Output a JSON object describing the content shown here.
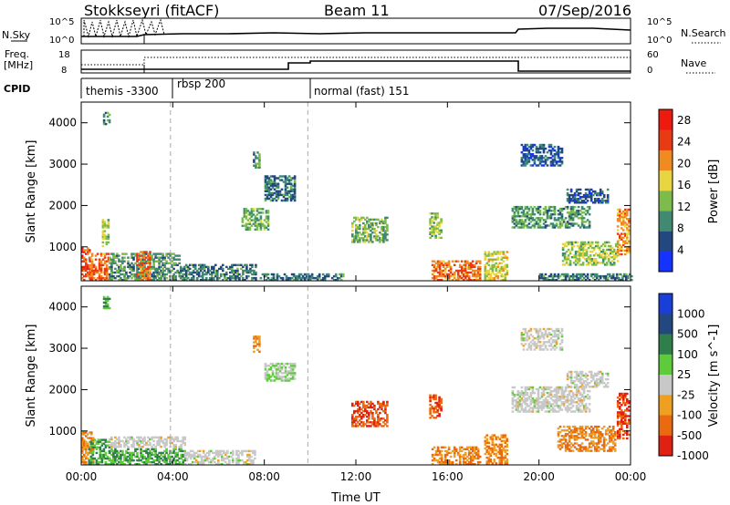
{
  "header": {
    "left_title": "Stokkseyri (fitACF)",
    "beam_label": "Beam 11",
    "date": "07/Sep/2016"
  },
  "nsky_panel": {
    "left_label": "N.Sky",
    "right_label": "N.Search",
    "left_ticks": [
      "10^5",
      "10^0"
    ],
    "right_ticks": [
      "10^5",
      "10^0"
    ]
  },
  "freq_panel": {
    "left_label_1": "Freq.",
    "left_label_2": "[MHz]",
    "right_label": "Nave",
    "left_ticks": [
      "18",
      "8"
    ],
    "right_ticks": [
      "60",
      "0"
    ]
  },
  "cpid": {
    "label": "CPID",
    "segments": [
      {
        "name": "themis -3300",
        "start_hour": 0.0
      },
      {
        "name": "rbsp 200",
        "start_hour": 3.9
      },
      {
        "name": "normal (fast) 151",
        "start_hour": 9.9
      }
    ]
  },
  "chart_data": [
    {
      "type": "heatmap",
      "title": "Power",
      "xlabel": "Time UT",
      "ylabel": "Slant Range [km]",
      "xlim_hours": [
        0,
        24
      ],
      "ylim_km": [
        180,
        4500
      ],
      "x_ticks": [
        "00:00",
        "04:00",
        "08:00",
        "12:00",
        "16:00",
        "20:00",
        "00:00"
      ],
      "y_ticks": [
        1000,
        2000,
        3000,
        4000
      ],
      "colorbar": {
        "label": "Power [dB]",
        "ticks": [
          4,
          8,
          12,
          16,
          20,
          24,
          28
        ],
        "range": [
          0,
          30
        ],
        "colors": [
          "#1433ff",
          "#23477f",
          "#3f8a70",
          "#7dbc4a",
          "#e8d640",
          "#f08b22",
          "#e83a14",
          "#ee1a10"
        ]
      },
      "echo_regions": [
        {
          "t0": 0.0,
          "t1": 0.35,
          "r0": 180,
          "r1": 950,
          "level": 24
        },
        {
          "t0": 0.35,
          "t1": 1.2,
          "r0": 180,
          "r1": 850,
          "level": 22
        },
        {
          "t0": 0.95,
          "t1": 1.2,
          "r0": 3950,
          "r1": 4250,
          "level": 10
        },
        {
          "t0": 0.9,
          "t1": 1.2,
          "r0": 1000,
          "r1": 1650,
          "level": 14
        },
        {
          "t0": 1.2,
          "t1": 4.3,
          "r0": 180,
          "r1": 850,
          "level": 10
        },
        {
          "t0": 2.4,
          "t1": 3.0,
          "r0": 180,
          "r1": 900,
          "level": 22
        },
        {
          "t0": 4.3,
          "t1": 7.6,
          "r0": 180,
          "r1": 550,
          "level": 8
        },
        {
          "t0": 7.5,
          "t1": 7.8,
          "r0": 2900,
          "r1": 3300,
          "level": 10
        },
        {
          "t0": 8.0,
          "t1": 9.3,
          "r0": 2100,
          "r1": 2700,
          "level": 8
        },
        {
          "t0": 7.0,
          "t1": 8.2,
          "r0": 1400,
          "r1": 1900,
          "level": 12
        },
        {
          "t0": 7.8,
          "t1": 11.5,
          "r0": 180,
          "r1": 330,
          "level": 8
        },
        {
          "t0": 11.8,
          "t1": 13.4,
          "r0": 1100,
          "r1": 1700,
          "level": 12
        },
        {
          "t0": 15.2,
          "t1": 15.7,
          "r0": 1200,
          "r1": 1800,
          "level": 14
        },
        {
          "t0": 15.3,
          "t1": 17.4,
          "r0": 180,
          "r1": 650,
          "level": 22
        },
        {
          "t0": 17.6,
          "t1": 18.6,
          "r0": 180,
          "r1": 900,
          "level": 16
        },
        {
          "t0": 19.2,
          "t1": 21.0,
          "r0": 2950,
          "r1": 3450,
          "level": 6
        },
        {
          "t0": 18.8,
          "t1": 22.2,
          "r0": 1450,
          "r1": 1950,
          "level": 10
        },
        {
          "t0": 21.2,
          "t1": 23.0,
          "r0": 2050,
          "r1": 2400,
          "level": 6
        },
        {
          "t0": 21.0,
          "t1": 23.4,
          "r0": 550,
          "r1": 1100,
          "level": 14
        },
        {
          "t0": 23.4,
          "t1": 23.9,
          "r0": 800,
          "r1": 1900,
          "level": 20
        },
        {
          "t0": 20.0,
          "t1": 24.0,
          "r0": 180,
          "r1": 350,
          "level": 8
        }
      ]
    },
    {
      "type": "heatmap",
      "title": "Velocity",
      "xlabel": "Time UT",
      "ylabel": "Slant Range [km]",
      "xlim_hours": [
        0,
        24
      ],
      "ylim_km": [
        180,
        4500
      ],
      "x_ticks": [
        "00:00",
        "04:00",
        "08:00",
        "12:00",
        "16:00",
        "20:00",
        "00:00"
      ],
      "y_ticks": [
        1000,
        2000,
        3000,
        4000
      ],
      "colorbar": {
        "label": "Velocity [m s^-1]",
        "ticks": [
          1000,
          500,
          100,
          25,
          -25,
          -100,
          -500,
          -1000
        ],
        "colors": [
          "#1a3fd9",
          "#23477f",
          "#2f7f4a",
          "#5ecb3a",
          "#c8c8c8",
          "#f0a020",
          "#ea6a10",
          "#e02010"
        ]
      },
      "echo_regions": [
        {
          "t0": 0.0,
          "t1": 0.5,
          "r0": 180,
          "r1": 950,
          "level": -100
        },
        {
          "t0": 0.3,
          "t1": 1.2,
          "r0": 180,
          "r1": 800,
          "level": 100
        },
        {
          "t0": 0.95,
          "t1": 1.2,
          "r0": 3950,
          "r1": 4250,
          "level": 100
        },
        {
          "t0": 1.2,
          "t1": 4.5,
          "r0": 600,
          "r1": 850,
          "level": 0
        },
        {
          "t0": 1.2,
          "t1": 4.5,
          "r0": 180,
          "r1": 550,
          "level": 100
        },
        {
          "t0": 4.5,
          "t1": 7.6,
          "r0": 180,
          "r1": 500,
          "level": 0
        },
        {
          "t0": 7.5,
          "t1": 7.8,
          "r0": 2900,
          "r1": 3300,
          "level": -100
        },
        {
          "t0": 8.0,
          "t1": 9.3,
          "r0": 2200,
          "r1": 2650,
          "level": 25
        },
        {
          "t0": 11.8,
          "t1": 13.4,
          "r0": 1100,
          "r1": 1700,
          "level": -500
        },
        {
          "t0": 15.2,
          "t1": 15.7,
          "r0": 1300,
          "r1": 1850,
          "level": -500
        },
        {
          "t0": 15.3,
          "t1": 17.4,
          "r0": 180,
          "r1": 600,
          "level": -100
        },
        {
          "t0": 17.6,
          "t1": 18.6,
          "r0": 200,
          "r1": 900,
          "level": -100
        },
        {
          "t0": 19.2,
          "t1": 21.0,
          "r0": 2950,
          "r1": 3450,
          "level": 0
        },
        {
          "t0": 18.8,
          "t1": 22.2,
          "r0": 1450,
          "r1": 2050,
          "level": 0
        },
        {
          "t0": 21.2,
          "t1": 23.0,
          "r0": 2050,
          "r1": 2450,
          "level": 0
        },
        {
          "t0": 20.8,
          "t1": 23.3,
          "r0": 500,
          "r1": 1100,
          "level": -100
        },
        {
          "t0": 23.4,
          "t1": 23.9,
          "r0": 800,
          "r1": 1900,
          "level": -500
        }
      ]
    }
  ]
}
